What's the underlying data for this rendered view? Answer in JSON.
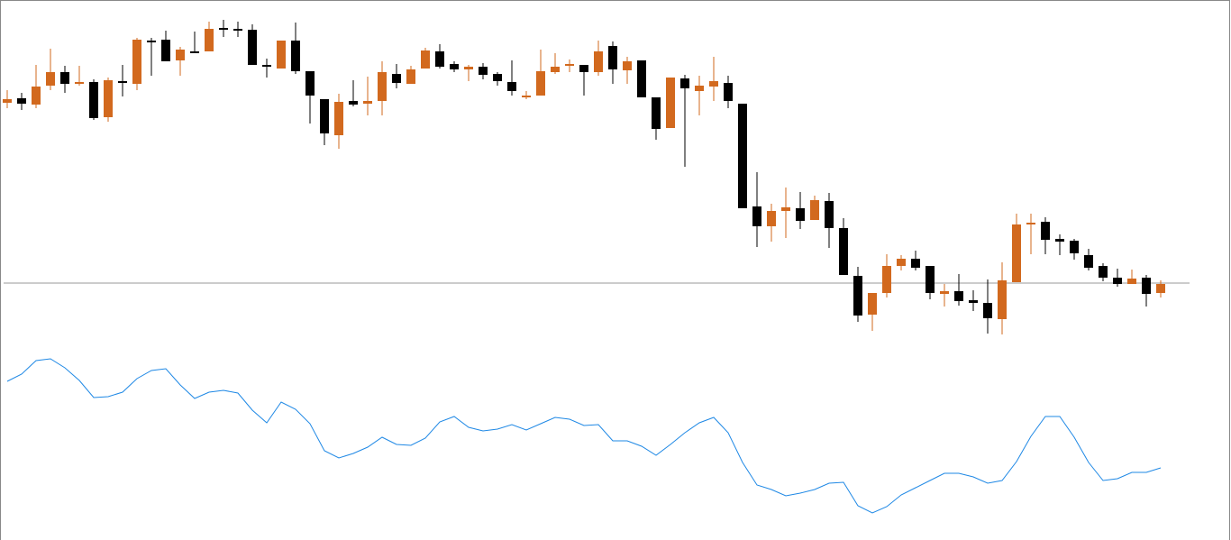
{
  "chart_data": {
    "type": "candlestick",
    "up_color": "#d2691e",
    "down_color": "#000000",
    "ylim": [
      0,
      600
    ],
    "level": 286,
    "level_color": "#999999",
    "open": [
      486,
      491,
      484,
      505,
      520,
      507,
      509,
      470,
      510,
      507,
      555,
      556,
      533,
      543,
      543,
      569,
      568,
      567,
      528,
      524,
      555,
      521,
      490,
      450,
      488,
      485,
      488,
      518,
      507,
      524,
      543,
      529,
      523,
      526,
      518,
      509,
      492,
      494,
      520,
      527,
      528,
      520,
      549,
      522,
      533,
      492,
      458,
      513,
      499,
      504,
      508,
      485,
      371,
      349,
      366,
      369,
      356,
      377,
      347,
      294,
      251,
      275,
      305,
      313,
      305,
      274,
      277,
      267,
      264,
      246,
      287,
      351,
      354,
      335,
      333,
      317,
      305,
      292,
      285,
      292,
      275
    ],
    "high": [
      500,
      497,
      528,
      546,
      527,
      527,
      512,
      514,
      528,
      558,
      558,
      566,
      548,
      565,
      576,
      578,
      576,
      573,
      535,
      555,
      575,
      521,
      490,
      496,
      511,
      515,
      532,
      529,
      527,
      547,
      551,
      532,
      528,
      530,
      520,
      533,
      499,
      545,
      541,
      534,
      528,
      555,
      554,
      537,
      533,
      492,
      514,
      517,
      516,
      537,
      516,
      485,
      409,
      374,
      392,
      387,
      383,
      386,
      358,
      304,
      275,
      318,
      317,
      322,
      305,
      285,
      296,
      278,
      290,
      309,
      363,
      363,
      359,
      340,
      335,
      324,
      308,
      302,
      301,
      295,
      289
    ],
    "low": [
      480,
      478,
      480,
      500,
      497,
      505,
      467,
      465,
      493,
      500,
      516,
      532,
      516,
      541,
      543,
      559,
      559,
      528,
      514,
      524,
      518,
      463,
      439,
      435,
      482,
      472,
      472,
      502,
      507,
      524,
      524,
      520,
      510,
      512,
      505,
      494,
      490,
      494,
      518,
      520,
      494,
      516,
      507,
      507,
      492,
      445,
      458,
      415,
      472,
      488,
      480,
      369,
      326,
      332,
      336,
      346,
      356,
      325,
      295,
      243,
      233,
      270,
      300,
      300,
      268,
      260,
      261,
      255,
      230,
      229,
      287,
      318,
      318,
      317,
      312,
      300,
      288,
      282,
      285,
      260,
      270
    ],
    "close": [
      490,
      485,
      504,
      520,
      507,
      509,
      469,
      511,
      508,
      556,
      553,
      532,
      545,
      541,
      568,
      567,
      566,
      528,
      526,
      555,
      521,
      494,
      452,
      487,
      484,
      488,
      520,
      508,
      523,
      544,
      526,
      523,
      526,
      517,
      510,
      499,
      494,
      521,
      526,
      529,
      520,
      543,
      523,
      532,
      492,
      457,
      514,
      502,
      505,
      510,
      488,
      369,
      349,
      366,
      370,
      355,
      378,
      347,
      295,
      250,
      275,
      305,
      313,
      303,
      275,
      277,
      266,
      264,
      247,
      289,
      351,
      353,
      334,
      332,
      319,
      303,
      292,
      285,
      291,
      274,
      285
    ],
    "indicator": {
      "type": "line",
      "color": "#1e88e5",
      "ylim": [
        0,
        600
      ],
      "values": [
        177,
        185,
        200,
        202,
        192,
        178,
        159,
        160,
        165,
        180,
        189,
        191,
        173,
        158,
        165,
        167,
        164,
        145,
        131,
        154,
        146,
        130,
        100,
        92,
        97,
        104,
        115,
        107,
        106,
        114,
        132,
        138,
        126,
        122,
        124,
        129,
        123,
        130,
        137,
        135,
        128,
        129,
        111,
        111,
        105,
        95,
        107,
        120,
        131,
        137,
        120,
        87,
        62,
        57,
        50,
        53,
        57,
        64,
        65,
        39,
        31,
        38,
        51,
        59,
        67,
        75,
        75,
        71,
        64,
        67,
        88,
        116,
        138,
        138,
        115,
        87,
        67,
        69,
        76,
        76,
        81
      ]
    }
  }
}
